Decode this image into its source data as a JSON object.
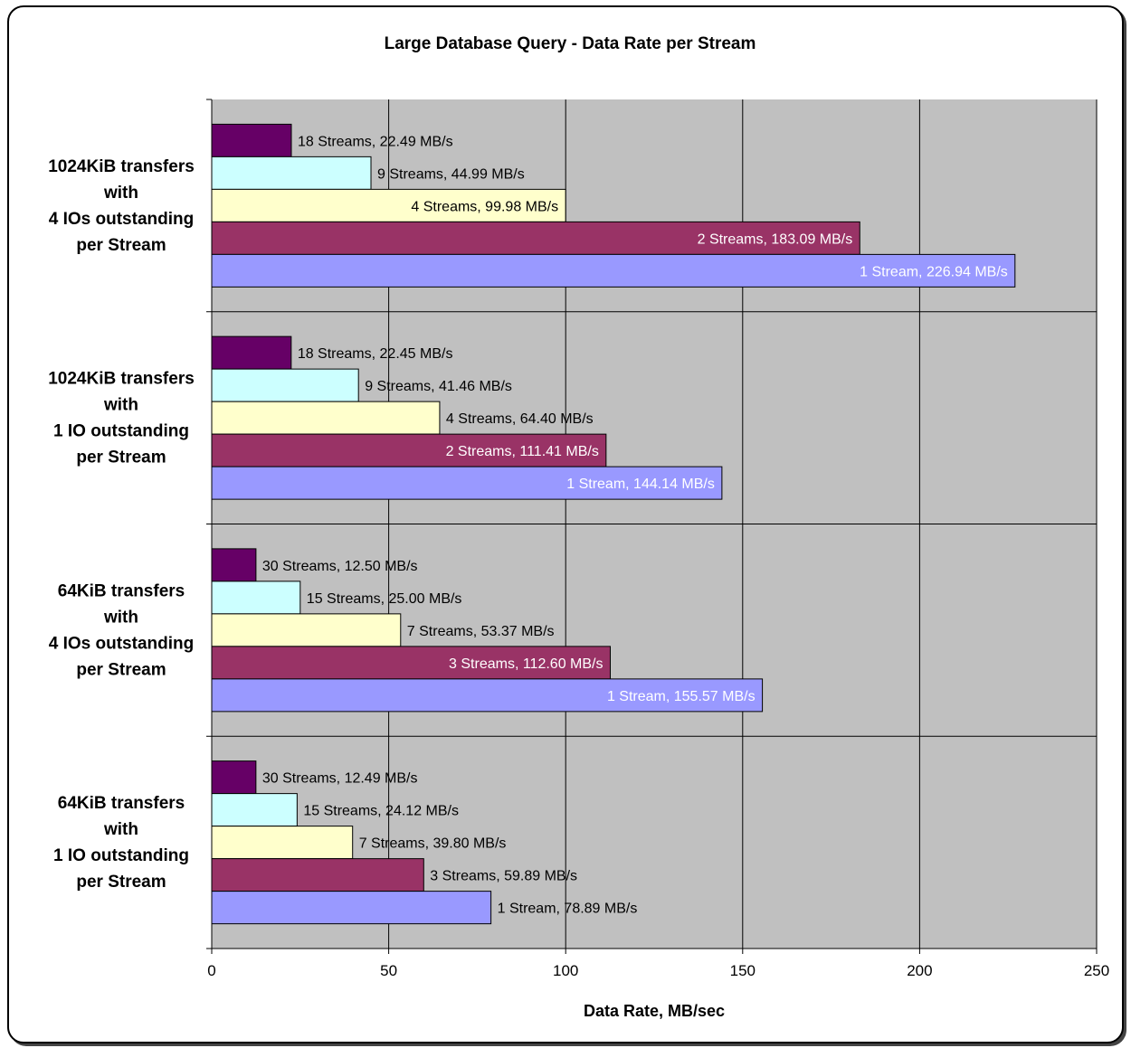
{
  "chart_data": {
    "type": "bar",
    "orientation": "horizontal",
    "title": "Large Database Query - Data Rate per Stream",
    "xlabel": "Data Rate, MB/sec",
    "ylabel": "",
    "xlim": [
      0,
      250
    ],
    "x_ticks": [
      0,
      50,
      100,
      150,
      200,
      250
    ],
    "grid": true,
    "legend": "none",
    "plot_background": "#c0c0c0",
    "colors": {
      "purple_dark": "#660066",
      "cyan_light": "#ccffff",
      "yellow_light": "#ffffcc",
      "maroon": "#993366",
      "periwinkle": "#9999ff"
    },
    "groups": [
      {
        "label_lines": [
          "1024KiB transfers",
          "with",
          "4 IOs outstanding",
          "per Stream"
        ],
        "bars": [
          {
            "label": "18 Streams, 22.49  MB/s",
            "value": 22.49,
            "color": "#660066",
            "label_color": "#000000",
            "label_inside": false
          },
          {
            "label": "9 Streams, 44.99  MB/s",
            "value": 44.99,
            "color": "#ccffff",
            "label_color": "#000000",
            "label_inside": false
          },
          {
            "label": "4 Streams, 99.98  MB/s",
            "value": 99.98,
            "color": "#ffffcc",
            "label_color": "#000000",
            "label_inside": true
          },
          {
            "label": "2 Streams, 183.09  MB/s",
            "value": 183.09,
            "color": "#993366",
            "label_color": "#ffffff",
            "label_inside": true
          },
          {
            "label": "1 Stream, 226.94  MB/s",
            "value": 226.94,
            "color": "#9999ff",
            "label_color": "#ffffff",
            "label_inside": true
          }
        ]
      },
      {
        "label_lines": [
          "1024KiB transfers",
          "with",
          "1 IO outstanding",
          "per Stream"
        ],
        "bars": [
          {
            "label": "18 Streams, 22.45  MB/s",
            "value": 22.45,
            "color": "#660066",
            "label_color": "#000000",
            "label_inside": false
          },
          {
            "label": "9 Streams, 41.46  MB/s",
            "value": 41.46,
            "color": "#ccffff",
            "label_color": "#000000",
            "label_inside": false
          },
          {
            "label": "4 Streams, 64.40  MB/s",
            "value": 64.4,
            "color": "#ffffcc",
            "label_color": "#000000",
            "label_inside": false
          },
          {
            "label": "2 Streams, 111.41  MB/s",
            "value": 111.41,
            "color": "#993366",
            "label_color": "#ffffff",
            "label_inside": true
          },
          {
            "label": "1 Stream, 144.14  MB/s",
            "value": 144.14,
            "color": "#9999ff",
            "label_color": "#ffffff",
            "label_inside": true
          }
        ]
      },
      {
        "label_lines": [
          "64KiB transfers",
          "with",
          "4 IOs outstanding",
          "per Stream"
        ],
        "bars": [
          {
            "label": "30 Streams, 12.50  MB/s",
            "value": 12.5,
            "color": "#660066",
            "label_color": "#000000",
            "label_inside": false
          },
          {
            "label": "15 Streams, 25.00  MB/s",
            "value": 25.0,
            "color": "#ccffff",
            "label_color": "#000000",
            "label_inside": false
          },
          {
            "label": "7 Streams, 53.37  MB/s",
            "value": 53.37,
            "color": "#ffffcc",
            "label_color": "#000000",
            "label_inside": false
          },
          {
            "label": "3 Streams, 112.60  MB/s",
            "value": 112.6,
            "color": "#993366",
            "label_color": "#ffffff",
            "label_inside": true
          },
          {
            "label": "1 Stream, 155.57  MB/s",
            "value": 155.57,
            "color": "#9999ff",
            "label_color": "#ffffff",
            "label_inside": true
          }
        ]
      },
      {
        "label_lines": [
          "64KiB transfers",
          "with",
          "1 IO outstanding",
          "per Stream"
        ],
        "bars": [
          {
            "label": "30 Streams, 12.49  MB/s",
            "value": 12.49,
            "color": "#660066",
            "label_color": "#000000",
            "label_inside": false
          },
          {
            "label": "15 Streams, 24.12  MB/s",
            "value": 24.12,
            "color": "#ccffff",
            "label_color": "#000000",
            "label_inside": false
          },
          {
            "label": "7 Streams, 39.80  MB/s",
            "value": 39.8,
            "color": "#ffffcc",
            "label_color": "#000000",
            "label_inside": false
          },
          {
            "label": "3 Streams, 59.89  MB/s",
            "value": 59.89,
            "color": "#993366",
            "label_color": "#000000",
            "label_inside": false
          },
          {
            "label": "1 Stream, 78.89  MB/s",
            "value": 78.89,
            "color": "#9999ff",
            "label_color": "#000000",
            "label_inside": false
          }
        ]
      }
    ]
  }
}
